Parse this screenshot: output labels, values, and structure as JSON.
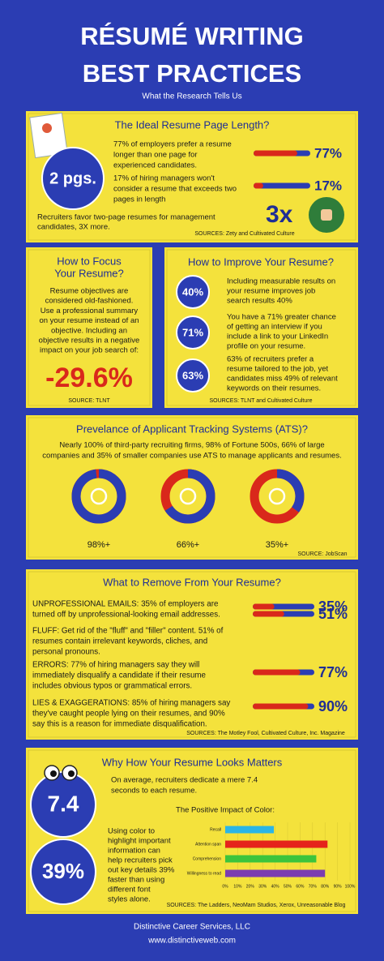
{
  "header": {
    "title_lines": [
      "RÉSUMÉ WRITING",
      "BEST PRACTICES"
    ],
    "subtitle": "What the Research Tells Us"
  },
  "page_length": {
    "title": "The Ideal Resume Page Length?",
    "badge": "2 pgs.",
    "stats": [
      {
        "text": [
          "77% of employers prefer a resume",
          "longer than one page for",
          "experienced candidates."
        ],
        "value": 77,
        "value_label": "77%"
      },
      {
        "text": [
          "17% of hiring managers won't",
          "consider a resume that exceeds two",
          "pages in length"
        ],
        "value": 17,
        "value_label": "17%"
      }
    ],
    "note": [
      "Recruiters favor two-page resumes for management",
      "candidates, 3X more."
    ],
    "multiplier": "3x",
    "source": "SOURCES: Zety and Cultivated Culture"
  },
  "focus": {
    "title": [
      "How to Focus",
      "Your Resume?"
    ],
    "text": [
      "Resume objectives are",
      "considered old-fashioned.",
      "Use a professional summary",
      "on your resume instead of an",
      "objective. Including an",
      "objective results in a negative",
      "impact on your job search of:"
    ],
    "impact": "-29.6%",
    "source": "SOURCE: TLNT"
  },
  "improve": {
    "title": "How to Improve Your Resume?",
    "items": [
      {
        "badge": "40%",
        "text": [
          "Including measurable results on",
          "your resume improves job",
          "search results 40%"
        ]
      },
      {
        "badge": "71%",
        "text": [
          "You have a 71% greater chance",
          "of getting an interview if you",
          "include a link to your LinkedIn",
          "profile on your resume."
        ]
      },
      {
        "badge": "63%",
        "text": [
          "63% of recruiters prefer a",
          "resume tailored to the job, yet",
          "candidates miss 49% of relevant",
          "keywords on their resumes."
        ]
      }
    ],
    "source": "SOURCES: TLNT and Cultivated Culture"
  },
  "ats": {
    "title": "Prevelance of Applicant Tracking Systems (ATS)?",
    "text": [
      "Nearly 100% of third-party recruiting firms, 98% of Fortune 500s, 66% of large",
      "companies and 35% of smaller companies use ATS to manage applicants and resumes."
    ],
    "rings": [
      {
        "value": 98,
        "label": "98%+"
      },
      {
        "value": 66,
        "label": "66%+"
      },
      {
        "value": 35,
        "label": "35%+"
      }
    ],
    "source": "SOURCE: JobScan"
  },
  "remove": {
    "title": "What to Remove From Your Resume?",
    "items": [
      {
        "text": [
          "UNPROFESSIONAL EMAILS: 35% of employers are",
          "turned off by unprofessional-looking email addresses."
        ],
        "value": 35,
        "value_label": "35%"
      },
      {
        "text": [
          "FLUFF: Get rid of the \"fluff\" and \"filler\" content. 51% of",
          "resumes contain irrelevant keywords, cliches, and",
          "personal pronouns."
        ],
        "value": 51,
        "value_label": "51%"
      },
      {
        "text": [
          "ERRORS: 77% of hiring managers say they will",
          "immediately disqualify a candidate if their resume",
          "includes obvious typos or grammatical errors."
        ],
        "value": 77,
        "value_label": "77%"
      },
      {
        "text": [
          "LIES & EXAGGERATIONS: 85% of hiring managers say",
          "they've caught people lying on their resumes, and 90%",
          "say this is a reason for immediate disqualification."
        ],
        "value": 90,
        "value_label": "90%"
      }
    ],
    "source": "SOURCES: The Motley Fool, Cultivated Culture, Inc. Magazine"
  },
  "looks": {
    "title": "Why How Your Resume Looks Matters",
    "badge": "7.4",
    "text": [
      "On average, recruiters dedicate a mere 7.4",
      "seconds to each resume."
    ],
    "color_chart": {
      "type": "bar",
      "title": "The Positive Impact of Color:",
      "categories": [
        "Recall",
        "Attention span",
        "Comprehension",
        "Willingness to read"
      ],
      "values": [
        39,
        82,
        73,
        80
      ],
      "colors": [
        "#2bb5e6",
        "#e5231b",
        "#3cc43c",
        "#7b3db0"
      ],
      "xlim": [
        0,
        100
      ],
      "xticks": [
        {
          "value": 0,
          "label": "0%"
        },
        {
          "value": 10,
          "label": "10%"
        },
        {
          "value": 20,
          "label": "20%"
        },
        {
          "value": 30,
          "label": "30%"
        },
        {
          "value": 40,
          "label": "40%"
        },
        {
          "value": 50,
          "label": "50%"
        },
        {
          "value": 60,
          "label": "60%"
        },
        {
          "value": 70,
          "label": "70%"
        },
        {
          "value": 80,
          "label": "80%"
        },
        {
          "value": 90,
          "label": "90%"
        },
        {
          "value": 100,
          "label": "100%"
        }
      ]
    },
    "badge2": "39%",
    "text2": [
      "Using color to",
      "highlight important",
      "information can",
      "help recruiters pick",
      "out key details 39%",
      "faster than using",
      "different font",
      "styles alone."
    ],
    "source": "SOURCES: The Ladders, NeoMam Studios, Xerox, Unreasonable Blog"
  },
  "footer": {
    "company": "Distinctive Career Services, LLC",
    "url": "www.distinctiveweb.com"
  }
}
